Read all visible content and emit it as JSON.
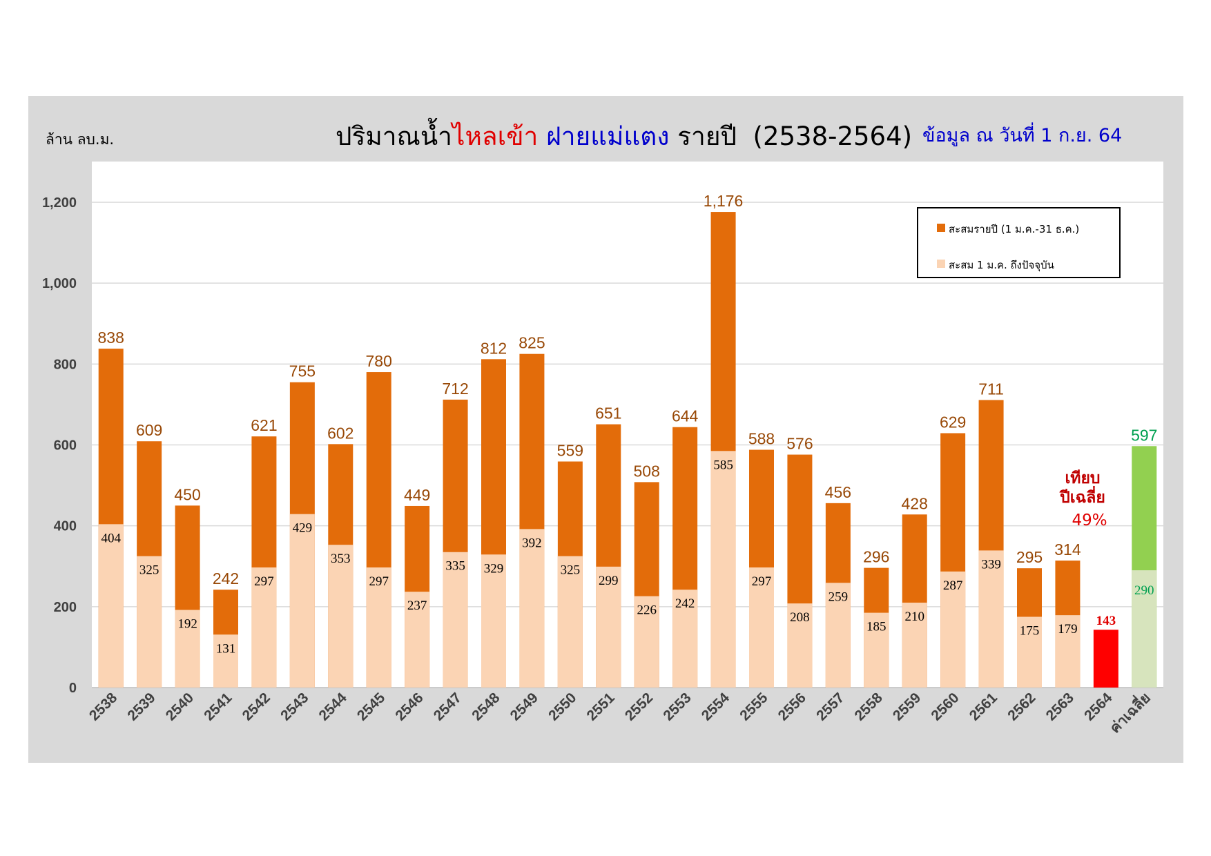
{
  "title": {
    "part1": "ปริมาณน้ำ",
    "part2": "ไหลเข้า",
    "part3": "ฝายแม่แตง",
    "part4": "รายปี",
    "part5": "(2538-2564)"
  },
  "unit_label": "ล้าน ลบ.ม.",
  "as_of": "ข้อมูล ณ วันที่ 1 ก.ย. 64",
  "legend": {
    "annual": "สะสมรายปี (1 ม.ค.-31 ธ.ค.)",
    "to_date": "สะสม 1 ม.ค. ถึงปัจจุบัน"
  },
  "annotation": {
    "line1": "เทียบ",
    "line2": "ปีเฉลี่ย",
    "percent": "49%"
  },
  "colors": {
    "annual": "#e36c0a",
    "to_date": "#fbd4b4",
    "annual_label": "#984806",
    "current_year": "#ff0000",
    "avg_annual": "#92d050",
    "avg_to_date": "#d7e4bd",
    "avg_label": "#00a050"
  },
  "chart_data": {
    "type": "bar",
    "ylim": [
      0,
      1300
    ],
    "yticks": [
      "0",
      "200",
      "400",
      "600",
      "800",
      "1,000",
      "1,200"
    ],
    "ytick_values": [
      0,
      200,
      400,
      600,
      800,
      1000,
      1200
    ],
    "grid": true,
    "legend_position": "top-right",
    "categories": [
      "2538",
      "2539",
      "2540",
      "2541",
      "2542",
      "2543",
      "2544",
      "2545",
      "2546",
      "2547",
      "2548",
      "2549",
      "2550",
      "2551",
      "2552",
      "2553",
      "2554",
      "2555",
      "2556",
      "2557",
      "2558",
      "2559",
      "2560",
      "2561",
      "2562",
      "2563",
      "2564",
      "ค่าเฉลี่ย"
    ],
    "series": [
      {
        "name": "สะสมรายปี (1 ม.ค.-31 ธ.ค.)",
        "values": [
          838,
          609,
          450,
          242,
          621,
          755,
          602,
          780,
          449,
          712,
          812,
          825,
          559,
          651,
          508,
          644,
          1176,
          588,
          576,
          456,
          296,
          428,
          629,
          711,
          295,
          314,
          null,
          597
        ],
        "labels": [
          "838",
          "609",
          "450",
          "242",
          "621",
          "755",
          "602",
          "780",
          "449",
          "712",
          "812",
          "825",
          "559",
          "651",
          "508",
          "644",
          "1,176",
          "588",
          "576",
          "456",
          "296",
          "428",
          "629",
          "711",
          "295",
          "314",
          "",
          "597"
        ]
      },
      {
        "name": "สะสม 1 ม.ค. ถึงปัจจุบัน",
        "values": [
          404,
          325,
          192,
          131,
          297,
          429,
          353,
          297,
          237,
          335,
          329,
          392,
          325,
          299,
          226,
          242,
          585,
          297,
          208,
          259,
          185,
          210,
          287,
          339,
          175,
          179,
          143,
          290
        ],
        "labels": [
          "404",
          "325",
          "192",
          "131",
          "297",
          "429",
          "353",
          "297",
          "237",
          "335",
          "329",
          "392",
          "325",
          "299",
          "226",
          "242",
          "585",
          "297",
          "208",
          "259",
          "185",
          "210",
          "287",
          "339",
          "175",
          "179",
          "143",
          "290"
        ]
      }
    ]
  }
}
